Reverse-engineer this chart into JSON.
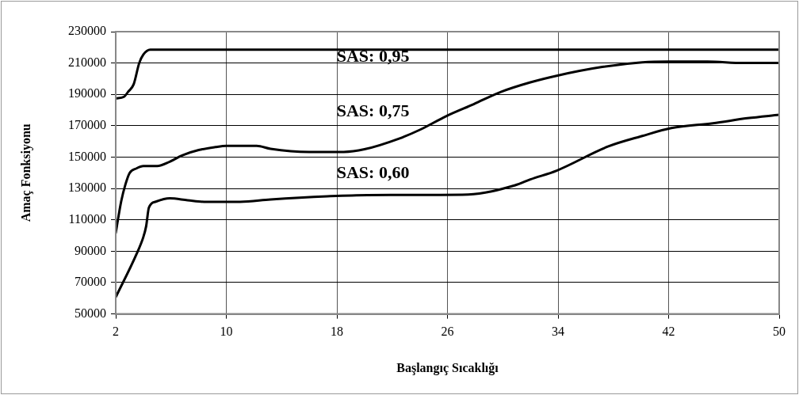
{
  "chart_data": {
    "type": "line",
    "xlabel": "Başlangıç Sıcaklığı",
    "ylabel": "Amaç Fonksiyonu",
    "xlim": [
      2,
      50
    ],
    "xticks": [
      2,
      10,
      18,
      26,
      34,
      42,
      50
    ],
    "ylim": [
      50000,
      230000
    ],
    "yticks": [
      50000,
      70000,
      90000,
      110000,
      130000,
      150000,
      170000,
      190000,
      210000,
      230000
    ],
    "grid": true,
    "legend": false,
    "marker": "none",
    "line_style": "solid",
    "series": [
      {
        "name": "SAS: 0,95",
        "color": "#000000",
        "x": [
          2,
          2.6,
          2.9,
          3.3,
          3.7,
          4,
          4.5,
          10,
          20,
          30,
          40,
          50
        ],
        "values": [
          187500,
          188500,
          191700,
          196500,
          210000,
          215400,
          218500,
          218500,
          218500,
          218500,
          218500,
          218500
        ]
      },
      {
        "name": "SAS: 0,75",
        "color": "#000000",
        "x": [
          2,
          2.4,
          2.7,
          3,
          3.5,
          4,
          5,
          5.9,
          6.8,
          8,
          9.2,
          10,
          12.2,
          13.2,
          16,
          18.5,
          20,
          22.5,
          24,
          25.9,
          27.9,
          29.9,
          32,
          33.9,
          37.2,
          40.1,
          42,
          44.8,
          47.4,
          50
        ],
        "values": [
          101700,
          122000,
          132500,
          139800,
          142800,
          144300,
          144300,
          147000,
          151100,
          154500,
          156400,
          157200,
          157200,
          155300,
          153300,
          153300,
          155000,
          161800,
          167400,
          176100,
          183800,
          191700,
          197700,
          201900,
          207500,
          210400,
          210900,
          210900,
          210000,
          210000
        ]
      },
      {
        "name": "SAS: 0,60",
        "color": "#000000",
        "x": [
          2,
          3.5,
          4,
          4.2,
          4.4,
          4.9,
          5.9,
          7.2,
          8.4,
          11,
          13.2,
          17.3,
          20.2,
          27.5,
          30.9,
          32,
          33.9,
          37.6,
          40.1,
          42.2,
          45.2,
          47.7,
          50
        ],
        "values": [
          60700,
          88100,
          99100,
          105900,
          117800,
          121600,
          123700,
          122500,
          121500,
          121500,
          123000,
          125000,
          125800,
          126200,
          132100,
          135800,
          141400,
          156700,
          163500,
          168500,
          171600,
          174800,
          177000
        ]
      }
    ]
  }
}
